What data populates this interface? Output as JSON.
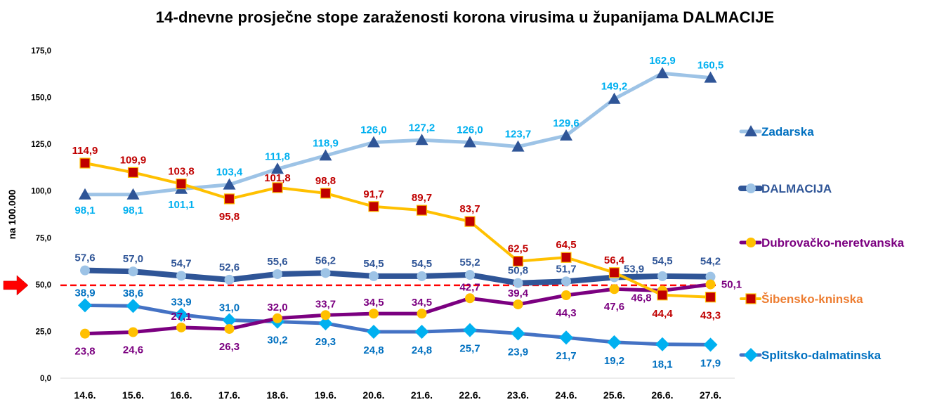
{
  "chart_data": {
    "type": "line",
    "title": "14-dnevne prosječne stope zaraženosti korona virusima u županijama DALMACIJE",
    "xlabel": "",
    "ylabel": "na 100.000",
    "ylim": [
      0,
      175
    ],
    "yticks": [
      0,
      25,
      50,
      75,
      100,
      125,
      150,
      175
    ],
    "ytick_labels": [
      "0,0",
      "25,0",
      "50,0",
      "75,0",
      "100,0",
      "125,0",
      "150,0",
      "175,0"
    ],
    "grid": false,
    "legend_position": "right",
    "categories": [
      "14.6.",
      "15.6.",
      "16.6.",
      "17.6.",
      "18.6.",
      "19.6.",
      "20.6.",
      "21.6.",
      "22.6.",
      "23.6.",
      "24.6.",
      "25.6.",
      "26.6.",
      "27.6."
    ],
    "threshold": {
      "value": 50,
      "label": "50,0",
      "color": "#ff0000",
      "style": "dashed",
      "marker": "red-arrow"
    },
    "series": [
      {
        "name": "Zadarska",
        "values": [
          98.1,
          98.1,
          101.1,
          103.4,
          111.8,
          118.9,
          126.0,
          127.2,
          126.0,
          123.7,
          129.6,
          149.2,
          162.9,
          160.5
        ],
        "labels": [
          "98,1",
          "98,1",
          "101,1",
          "103,4",
          "111,8",
          "118,9",
          "126,0",
          "127,2",
          "126,0",
          "123,7",
          "129,6",
          "149,2",
          "162,9",
          "160,5"
        ],
        "line_color": "#9dc3e6",
        "marker": "triangle",
        "marker_color": "#2f5597",
        "label_color": "#00b0f0",
        "legend_color": "#0070c0"
      },
      {
        "name": "DALMACIJA",
        "values": [
          57.6,
          57.0,
          54.7,
          52.6,
          55.6,
          56.2,
          54.5,
          54.5,
          55.2,
          50.8,
          51.7,
          53.9,
          54.5,
          54.2
        ],
        "labels": [
          "57,6",
          "57,0",
          "54,7",
          "52,6",
          "55,6",
          "56,2",
          "54,5",
          "54,5",
          "55,2",
          "50,8",
          "51,7",
          "53,9",
          "54,5",
          "54,2"
        ],
        "line_color": "#2f5597",
        "marker": "circle",
        "marker_color": "#9dc3e6",
        "label_color": "#2f5597",
        "legend_color": "#2f5597"
      },
      {
        "name": "Dubrovačko-neretvanska",
        "values": [
          23.8,
          24.6,
          27.1,
          26.3,
          32.0,
          33.7,
          34.5,
          34.5,
          42.7,
          39.4,
          44.3,
          47.6,
          46.8,
          50.1
        ],
        "labels": [
          "23,8",
          "24,6",
          "27,1",
          "26,3",
          "32,0",
          "33,7",
          "34,5",
          "34,5",
          "42,7",
          "39,4",
          "44,3",
          "47,6",
          "46,8",
          "50,1"
        ],
        "line_color": "#7b0080",
        "marker": "circle",
        "marker_color": "#ffc000",
        "label_color": "#7b0080",
        "legend_color": "#7b0080"
      },
      {
        "name": "Šibensko-kninska",
        "values": [
          114.9,
          109.9,
          103.8,
          95.8,
          101.8,
          98.8,
          91.7,
          89.7,
          83.7,
          62.5,
          64.5,
          56.4,
          44.4,
          43.3
        ],
        "labels": [
          "114,9",
          "109,9",
          "103,8",
          "95,8",
          "101,8",
          "98,8",
          "91,7",
          "89,7",
          "83,7",
          "62,5",
          "64,5",
          "56,4",
          "44,4",
          "43,3"
        ],
        "line_color": "#ffc000",
        "marker": "square",
        "marker_color": "#c00000",
        "label_color": "#c00000",
        "legend_color": "#ed7d31"
      },
      {
        "name": "Splitsko-dalmatinska",
        "values": [
          38.9,
          38.6,
          33.9,
          31.0,
          30.2,
          29.3,
          24.8,
          24.8,
          25.7,
          23.9,
          21.7,
          19.2,
          18.1,
          17.9
        ],
        "labels": [
          "38,9",
          "38,6",
          "33,9",
          "31,0",
          "30,2",
          "29,3",
          "24,8",
          "24,8",
          "25,7",
          "23,9",
          "21,7",
          "19,2",
          "18,1",
          "17,9"
        ],
        "line_color": "#4472c4",
        "marker": "diamond",
        "marker_color": "#00b0f0",
        "label_color": "#0070c0",
        "legend_color": "#0070c0"
      }
    ]
  }
}
